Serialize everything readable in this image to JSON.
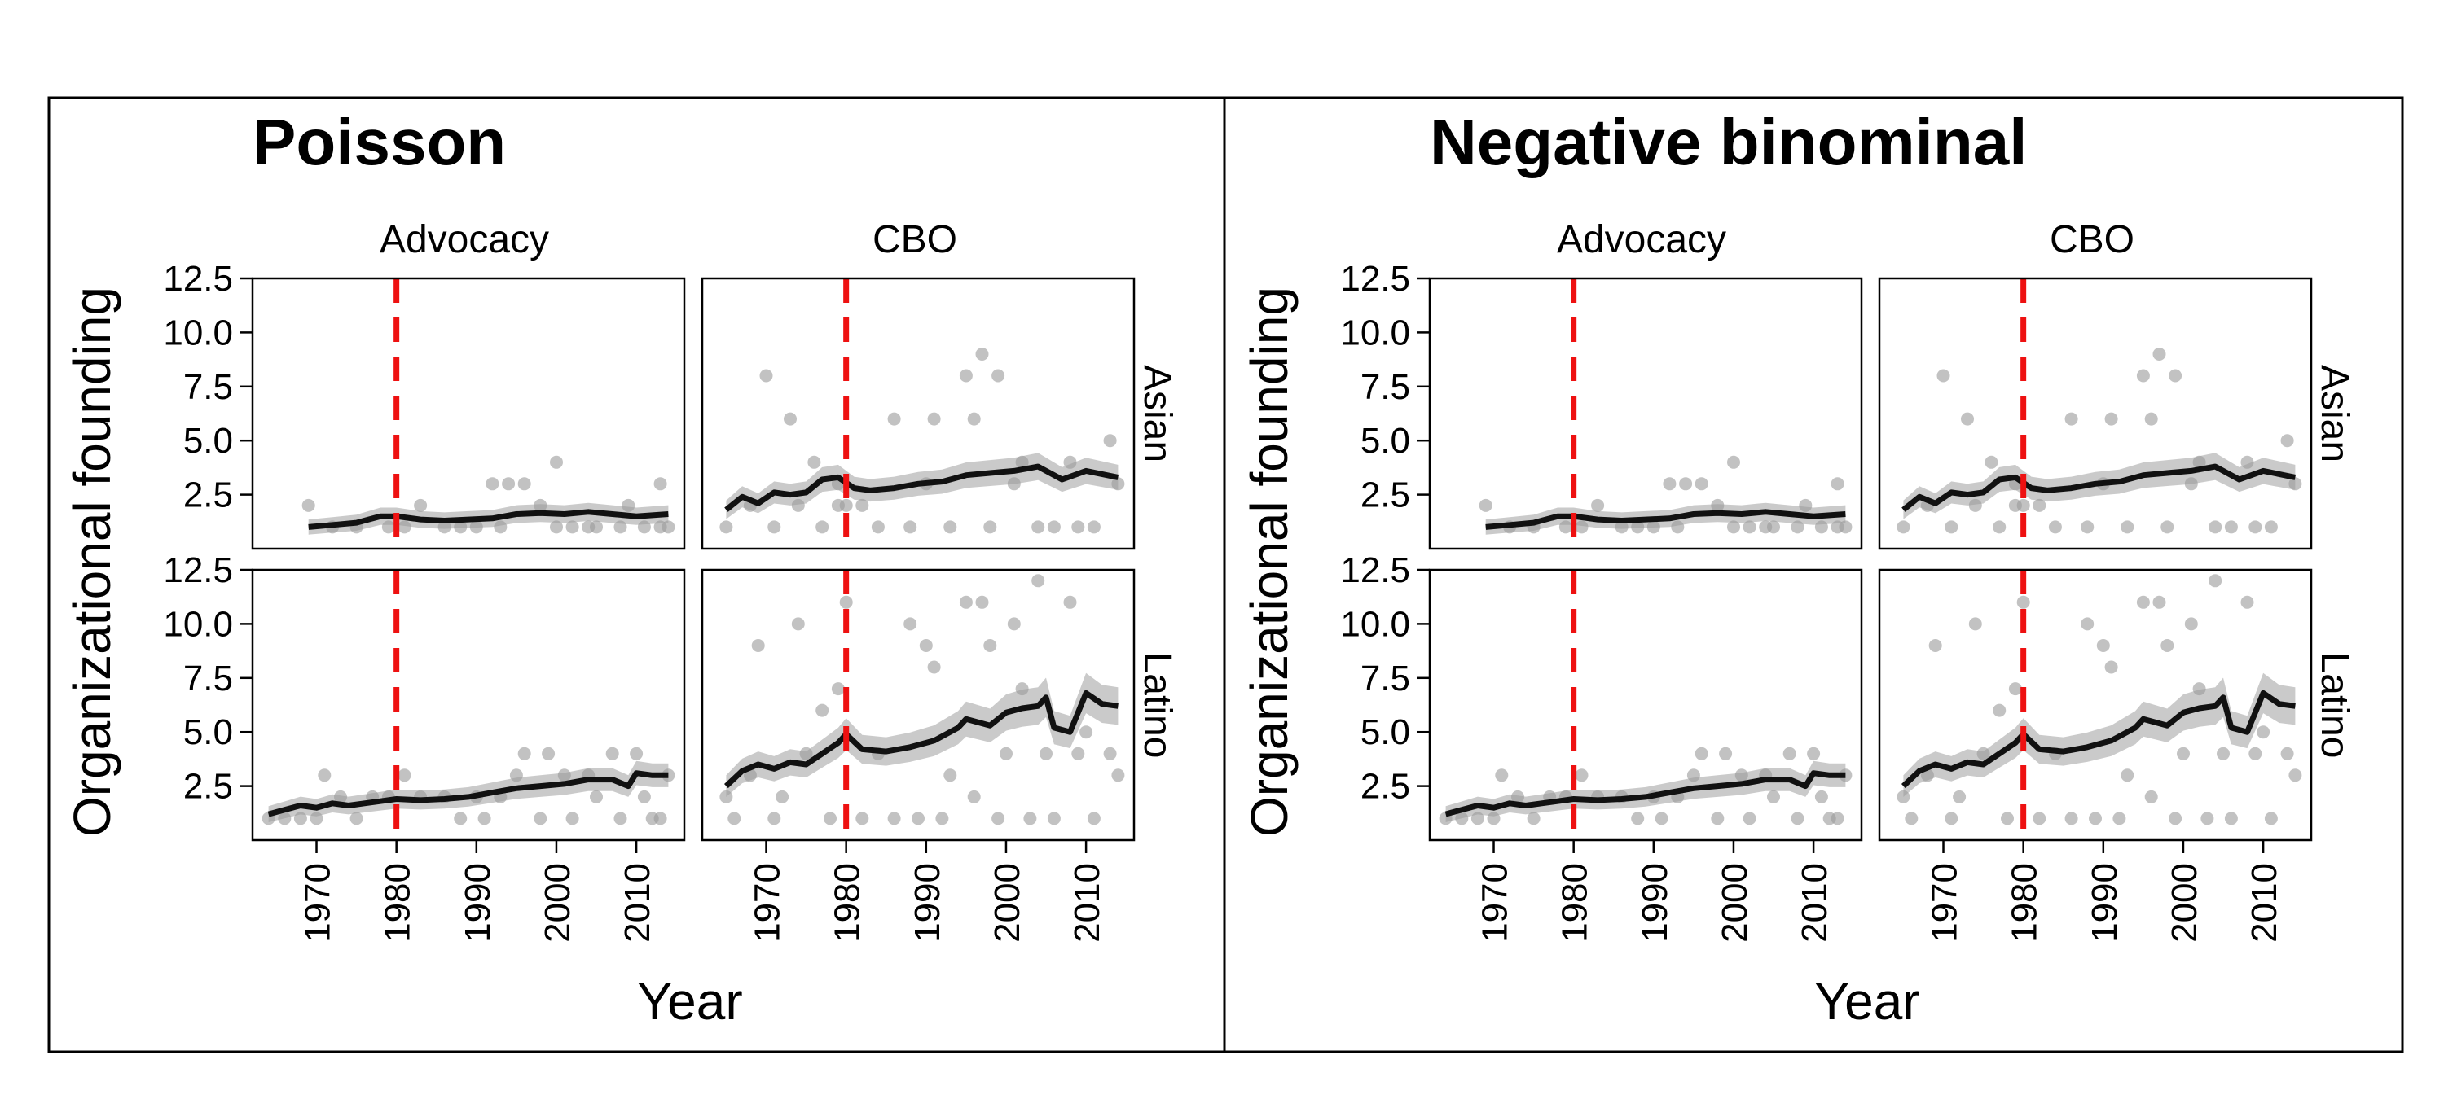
{
  "panels": [
    {
      "title": "Poisson"
    },
    {
      "title": "Negative binominal"
    }
  ],
  "colors": {
    "fit_line": "#111111",
    "band": "#9e9e9e",
    "points": "#9a9a9a",
    "cutoff_line": "#ee1111",
    "frame": "#000000"
  },
  "chart_data": {
    "type": "line",
    "facet_cols": [
      "Advocacy",
      "CBO"
    ],
    "facet_rows": [
      "Asian",
      "Latino"
    ],
    "xlabel": "Year",
    "ylabel": "Organizational founding",
    "xlim": [
      1962,
      2016
    ],
    "xticks": [
      1970,
      1980,
      1990,
      2000,
      2010
    ],
    "ylim": [
      0.0,
      12.5
    ],
    "yticks": [
      "2.5",
      "5.0",
      "7.5",
      "10.0",
      "12.5"
    ],
    "cutoff_year": 1980,
    "facets": {
      "Advocacy|Asian": {
        "line": {
          "x": [
            1969,
            1972,
            1975,
            1978,
            1980,
            1983,
            1986,
            1989,
            1992,
            1995,
            1998,
            2001,
            2004,
            2007,
            2010,
            2014
          ],
          "y": [
            1.0,
            1.1,
            1.2,
            1.5,
            1.5,
            1.35,
            1.3,
            1.35,
            1.4,
            1.6,
            1.65,
            1.6,
            1.7,
            1.6,
            1.5,
            1.6
          ]
        },
        "points": {
          "x": [
            1969,
            1972,
            1975,
            1979,
            1981,
            1983,
            1986,
            1988,
            1990,
            1992,
            1993,
            1994,
            1996,
            1998,
            2000,
            2000,
            2002,
            2004,
            2005,
            2008,
            2009,
            2011,
            2013,
            2013,
            2014
          ],
          "y": [
            2,
            1,
            1,
            1,
            1,
            2,
            1,
            1,
            1,
            3,
            1,
            3,
            3,
            2,
            4,
            1,
            1,
            1,
            1,
            1,
            2,
            1,
            1,
            3,
            1
          ]
        }
      },
      "CBO|Asian": {
        "line": {
          "x": [
            1965,
            1967,
            1969,
            1971,
            1973,
            1975,
            1977,
            1979,
            1981,
            1983,
            1986,
            1989,
            1992,
            1995,
            1998,
            2001,
            2004,
            2007,
            2010,
            2014
          ],
          "y": [
            1.8,
            2.4,
            2.1,
            2.6,
            2.5,
            2.6,
            3.2,
            3.3,
            2.8,
            2.7,
            2.8,
            3.0,
            3.1,
            3.4,
            3.5,
            3.6,
            3.8,
            3.2,
            3.6,
            3.3
          ]
        },
        "points": {
          "x": [
            1965,
            1968,
            1970,
            1971,
            1973,
            1974,
            1976,
            1977,
            1979,
            1979,
            1980,
            1982,
            1984,
            1986,
            1988,
            1990,
            1991,
            1993,
            1995,
            1996,
            1997,
            1998,
            1999,
            2001,
            2002,
            2004,
            2006,
            2008,
            2009,
            2011,
            2013,
            2014
          ],
          "y": [
            1,
            2,
            8,
            1,
            6,
            2,
            4,
            1,
            2,
            3,
            2,
            2,
            1,
            6,
            1,
            3,
            6,
            1,
            8,
            6,
            9,
            1,
            8,
            3,
            4,
            1,
            1,
            4,
            1,
            1,
            5,
            3
          ]
        }
      },
      "Advocacy|Latino": {
        "line": {
          "x": [
            1964,
            1966,
            1968,
            1970,
            1972,
            1974,
            1976,
            1978,
            1980,
            1983,
            1986,
            1989,
            1992,
            1995,
            1998,
            2001,
            2004,
            2007,
            2009,
            2010,
            2012,
            2014
          ],
          "y": [
            1.2,
            1.4,
            1.6,
            1.5,
            1.7,
            1.6,
            1.7,
            1.8,
            1.9,
            1.85,
            1.9,
            2.0,
            2.2,
            2.4,
            2.5,
            2.6,
            2.8,
            2.8,
            2.5,
            3.1,
            3.0,
            3.0
          ]
        },
        "points": {
          "x": [
            1964,
            1966,
            1968,
            1970,
            1971,
            1973,
            1975,
            1977,
            1979,
            1981,
            1983,
            1986,
            1988,
            1990,
            1991,
            1993,
            1995,
            1996,
            1998,
            1999,
            2001,
            2002,
            2004,
            2005,
            2007,
            2008,
            2010,
            2011,
            2012,
            2013,
            2014
          ],
          "y": [
            1,
            1,
            1,
            1,
            3,
            2,
            1,
            2,
            2,
            3,
            2,
            2,
            1,
            2,
            1,
            2,
            3,
            4,
            1,
            4,
            3,
            1,
            3,
            2,
            4,
            1,
            4,
            2,
            1,
            1,
            3
          ]
        }
      },
      "CBO|Latino": {
        "line": {
          "x": [
            1965,
            1967,
            1969,
            1971,
            1973,
            1975,
            1977,
            1979,
            1980,
            1982,
            1985,
            1988,
            1991,
            1994,
            1995,
            1998,
            2000,
            2002,
            2004,
            2005,
            2006,
            2008,
            2010,
            2012,
            2014
          ],
          "y": [
            2.5,
            3.2,
            3.5,
            3.3,
            3.6,
            3.5,
            4.0,
            4.5,
            4.9,
            4.2,
            4.1,
            4.3,
            4.6,
            5.2,
            5.6,
            5.3,
            5.9,
            6.1,
            6.2,
            6.6,
            5.2,
            5.0,
            6.8,
            6.3,
            6.2
          ]
        },
        "points": {
          "x": [
            1965,
            1966,
            1968,
            1969,
            1971,
            1972,
            1974,
            1975,
            1977,
            1978,
            1979,
            1980,
            1982,
            1984,
            1986,
            1988,
            1989,
            1990,
            1991,
            1992,
            1993,
            1995,
            1996,
            1997,
            1998,
            1999,
            2000,
            2001,
            2002,
            2003,
            2004,
            2005,
            2006,
            2008,
            2009,
            2010,
            2011,
            2013,
            2014
          ],
          "y": [
            2,
            1,
            3,
            9,
            1,
            2,
            10,
            4,
            6,
            1,
            7,
            11,
            1,
            4,
            1,
            10,
            1,
            9,
            8,
            1,
            3,
            11,
            2,
            11,
            9,
            1,
            4,
            10,
            7,
            1,
            12,
            4,
            1,
            11,
            4,
            5,
            1,
            4,
            3
          ]
        }
      }
    }
  }
}
